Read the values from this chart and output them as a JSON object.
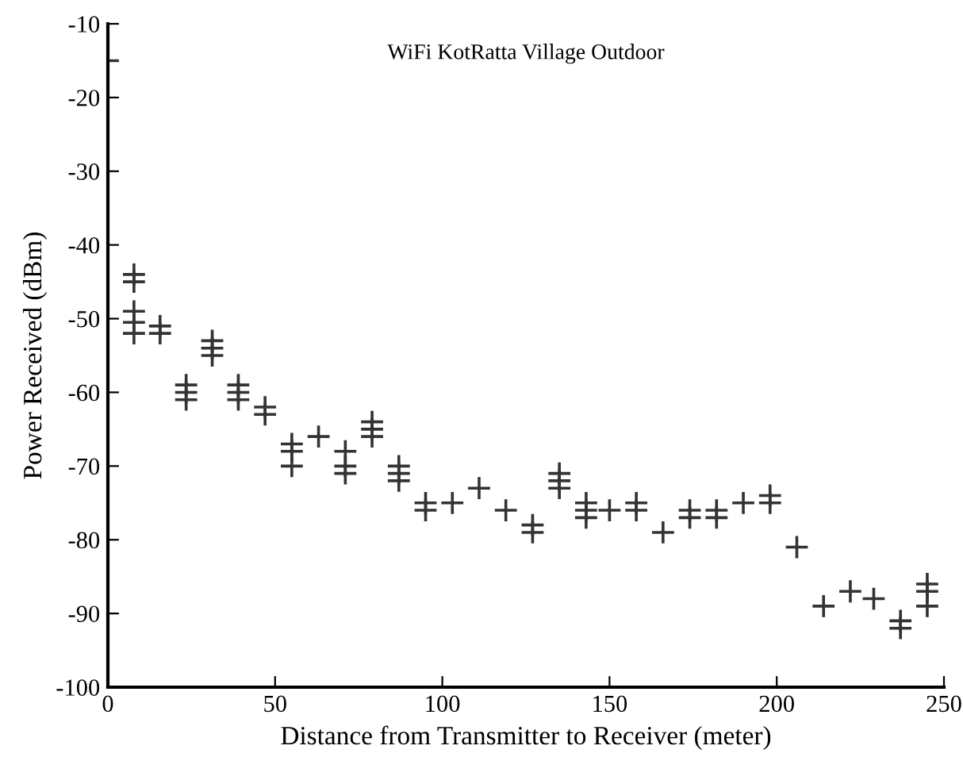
{
  "chart_data": {
    "type": "scatter",
    "title": "WiFi KotRatta Village Outdoor",
    "xlabel": "Distance from Transmitter to Receiver (meter)",
    "ylabel": "Power Received (dBm)",
    "series": [
      {
        "color": "#333333",
        "x": [
          0,
          7.8,
          7.8,
          7.8,
          7.8,
          7.8,
          15.6,
          15.6,
          23.4,
          23.4,
          23.4,
          31.2,
          31.2,
          31.2,
          39,
          39,
          39,
          47,
          47,
          55,
          55,
          55,
          63,
          71,
          71,
          71,
          79,
          79,
          79,
          87,
          87,
          87,
          95,
          95,
          103,
          111,
          119,
          127,
          127,
          135,
          135,
          135,
          143,
          143,
          143,
          150,
          158,
          158,
          166,
          174,
          174,
          182,
          182,
          190,
          198,
          198,
          206,
          214,
          222,
          229,
          237,
          237,
          245,
          245,
          245
        ],
        "values": [
          -15,
          -44,
          -45,
          -49,
          -50.5,
          -52,
          -51,
          -52,
          -59,
          -60,
          -61,
          -53,
          -54,
          -55,
          -59,
          -60,
          -61,
          -62,
          -63,
          -67,
          -68,
          -70,
          -66,
          -68,
          -70,
          -71,
          -64,
          -65,
          -66,
          -70,
          -71,
          -72,
          -75,
          -76,
          -75,
          -73,
          -76,
          -78,
          -79,
          -71,
          -72,
          -73,
          -75,
          -76,
          -77,
          -76,
          -75,
          -76,
          -79,
          -76,
          -77,
          -76,
          -77,
          -75,
          -74,
          -75,
          -81,
          -89,
          -87,
          -88,
          -91,
          -92,
          -86,
          -87,
          -89
        ]
      }
    ],
    "marker": "cross",
    "xlim": [
      0,
      250
    ],
    "xticks": [
      0,
      50,
      100,
      150,
      200,
      250
    ],
    "ylim": [
      -100,
      -10
    ],
    "yticks": [
      -100,
      -90,
      -80,
      -70,
      -60,
      -50,
      -40,
      -30,
      -20,
      -10
    ],
    "grid": false,
    "legend": false
  }
}
